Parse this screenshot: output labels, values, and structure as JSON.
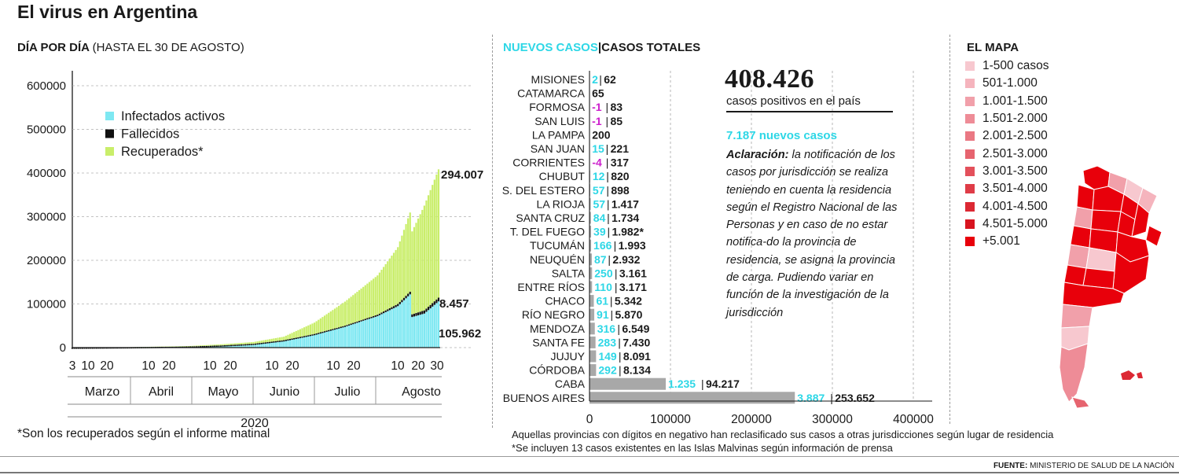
{
  "title": "El virus en Argentina",
  "left_panel": {
    "heading_bold": "DÍA POR DÍA",
    "heading_light": "(HASTA EL 30 DE AGOSTO)",
    "year": "2020",
    "footnote": "*Son los recuperados según el informe matinal"
  },
  "middle_panel": {
    "heading_new": "NUEVOS CASOS",
    "heading_sep": "|",
    "heading_total": "CASOS TOTALES",
    "total_big": "408.426",
    "total_sub": "casos positivos en el país",
    "new_cases_line": "7.187 nuevos casos",
    "note_bold": "Aclaración:",
    "note_text": "la notificación de los casos por jurisdicción se realiza teniendo en cuenta la residencia según el Registro Nacional de las Personas y en caso de no estar notifica-do la provincia de residencia, se asigna la provincia de carga. Pudiendo variar en función de la investigación de la jurisdicción",
    "footnote1": "Aquellas provincias con dígitos en negativo han reclasificado sus casos a otras jurisdicciones según lugar de residencia",
    "footnote2": "*Se incluyen 13 casos existentes en las Islas Malvinas según información de prensa"
  },
  "map_panel": {
    "heading": "EL MAPA",
    "legend": [
      {
        "label": "1-500 casos",
        "color": "#f7c8cf"
      },
      {
        "label": "501-1.000",
        "color": "#f5b4bd"
      },
      {
        "label": "1.001-1.500",
        "color": "#f1a0aa"
      },
      {
        "label": "1.501-2.000",
        "color": "#ee8c97"
      },
      {
        "label": "2.001-2.500",
        "color": "#ea7883"
      },
      {
        "label": "2.501-3.000",
        "color": "#e6646f"
      },
      {
        "label": "3.001-3.500",
        "color": "#e3505b"
      },
      {
        "label": "3.501-4.000",
        "color": "#df3c47"
      },
      {
        "label": "4.001-4.500",
        "color": "#dc2833"
      },
      {
        "label": "4.501-5.000",
        "color": "#d8141f"
      },
      {
        "label": "+5.001",
        "color": "#e8000b"
      }
    ]
  },
  "source_label": "FUENTE:",
  "source_text": "MINISTERIO DE SALUD DE LA NACIÓN",
  "colors": {
    "active": "#7ee8f2",
    "deaths": "#111111",
    "recovered": "#c9ee6a",
    "new_cases": "#2ed7e6",
    "negative": "#cc1fcc",
    "bar_total": "#a8a8a8"
  },
  "chart_data": [
    {
      "type": "area",
      "title": "DÍA POR DÍA",
      "ylim": [
        0,
        650000
      ],
      "yticks": [
        0,
        100000,
        200000,
        300000,
        400000,
        500000,
        600000
      ],
      "ytick_labels": [
        "0",
        "100000",
        "200000",
        "300000",
        "400000",
        "500000",
        "600000"
      ],
      "x_day_labels": [
        "3",
        "10",
        "20",
        "10",
        "20",
        "10",
        "20",
        "10",
        "20",
        "10",
        "20",
        "10",
        "20",
        "30"
      ],
      "months": [
        "Marzo",
        "Abril",
        "Mayo",
        "Junio",
        "Julio",
        "Agosto"
      ],
      "legend": [
        "Infectados activos",
        "Fallecidos",
        "Recuperados*"
      ],
      "series": [
        {
          "name": "Infectados activos",
          "dates": [
            "2020-03-03",
            "2020-03-31",
            "2020-04-30",
            "2020-05-15",
            "2020-05-31",
            "2020-06-15",
            "2020-06-30",
            "2020-07-15",
            "2020-07-31",
            "2020-08-10",
            "2020-08-16",
            "2020-08-17",
            "2020-08-23",
            "2020-08-30"
          ],
          "values": [
            0,
            800,
            2500,
            4500,
            8000,
            16000,
            30000,
            48000,
            72000,
            95000,
            122000,
            70000,
            78000,
            105962
          ]
        },
        {
          "name": "Fallecidos",
          "dates": [
            "2020-03-03",
            "2020-04-30",
            "2020-06-30",
            "2020-07-31",
            "2020-08-30"
          ],
          "values": [
            0,
            200,
            1300,
            3400,
            8457
          ]
        },
        {
          "name": "Recuperados*",
          "dates": [
            "2020-03-03",
            "2020-03-31",
            "2020-04-30",
            "2020-05-15",
            "2020-05-31",
            "2020-06-15",
            "2020-06-30",
            "2020-07-15",
            "2020-07-31",
            "2020-08-10",
            "2020-08-17",
            "2020-08-23",
            "2020-08-30"
          ],
          "values": [
            0,
            50,
            1000,
            2500,
            4000,
            8000,
            26000,
            55000,
            90000,
            130000,
            190000,
            240000,
            294007
          ]
        }
      ],
      "end_labels": [
        "294.007",
        "8.457",
        "105.962"
      ]
    },
    {
      "type": "bar",
      "title": "NUEVOS CASOS | CASOS TOTALES",
      "xlim": [
        0,
        400000
      ],
      "xticks": [
        0,
        100000,
        200000,
        300000,
        400000
      ],
      "xtick_labels": [
        "0",
        "100000",
        "200000",
        "300000",
        "400000"
      ],
      "categories": [
        "MISIONES",
        "CATAMARCA",
        "FORMOSA",
        "SAN LUIS",
        "LA PAMPA",
        "SAN JUAN",
        "CORRIENTES",
        "CHUBUT",
        "S. DEL ESTERO",
        "LA RIOJA",
        "SANTA CRUZ",
        "T. DEL FUEGO",
        "TUCUMÁN",
        "NEUQUÉN",
        "SALTA",
        "ENTRE RÍOS",
        "CHACO",
        "RÍO NEGRO",
        "MENDOZA",
        "SANTA FE",
        "JUJUY",
        "CÓRDOBA",
        "CABA",
        "BUENOS AIRES"
      ],
      "new_labels": [
        "2",
        "",
        "-1",
        "-1",
        "",
        "15",
        "-4",
        "12",
        "57",
        "57",
        "84",
        "39",
        "166",
        "87",
        "250",
        "110",
        "61",
        "91",
        "316",
        "283",
        "149",
        "292",
        "1.235",
        "3.887"
      ],
      "total_labels": [
        "62",
        "65",
        "83",
        "85",
        "200",
        "221",
        "317",
        "820",
        "898",
        "1.417",
        "1.734",
        "1.982*",
        "1.993",
        "2.932",
        "3.161",
        "3.171",
        "5.342",
        "5.870",
        "6.549",
        "7.430",
        "8.091",
        "8.134",
        "94.217",
        "253.652"
      ],
      "series": [
        {
          "name": "NUEVOS CASOS",
          "values": [
            2,
            0,
            -1,
            -1,
            0,
            15,
            -4,
            12,
            57,
            57,
            84,
            39,
            166,
            87,
            250,
            110,
            61,
            91,
            316,
            283,
            149,
            292,
            1235,
            3887
          ]
        },
        {
          "name": "CASOS TOTALES",
          "values": [
            62,
            65,
            83,
            85,
            200,
            221,
            317,
            820,
            898,
            1417,
            1734,
            1982,
            1993,
            2932,
            3161,
            3171,
            5342,
            5870,
            6549,
            7430,
            8091,
            8134,
            94217,
            253652
          ]
        }
      ]
    }
  ]
}
